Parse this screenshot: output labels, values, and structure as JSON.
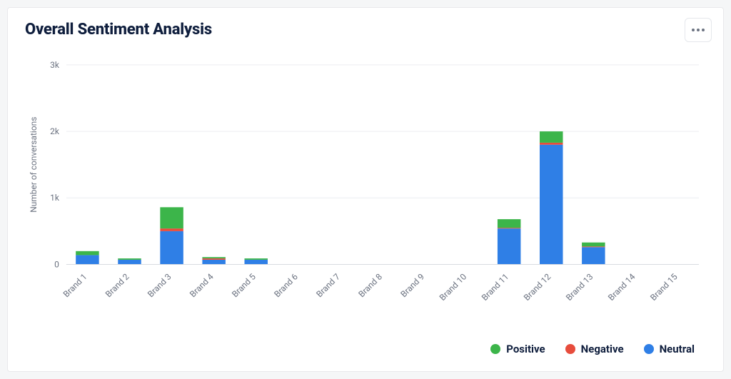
{
  "card": {
    "title": "Overall Sentiment Analysis"
  },
  "chart": {
    "type": "stacked-bar",
    "y_axis_title": "Number of conversations",
    "ylim": [
      0,
      3000
    ],
    "ytick_step": 1000,
    "ytick_labels": [
      "0",
      "1k",
      "2k",
      "3k"
    ],
    "grid_color": "#eceef1",
    "axis_color": "#d8dbe0",
    "axis_label_color": "#6b7280",
    "background_color": "#ffffff",
    "bar_width_ratio": 0.55,
    "label_fontsize": 12,
    "categories": [
      "Brand 1",
      "Brand 2",
      "Brand 3",
      "Brand 4",
      "Brand 5",
      "Brand 6",
      "Brand 7",
      "Brand 8",
      "Brand 9",
      "Brand 10",
      "Brand 11",
      "Brand 12",
      "Brand 13",
      "Brand 14",
      "Brand 15"
    ],
    "series": [
      {
        "name": "Neutral",
        "color": "#2f7fe6",
        "values": [
          140,
          70,
          500,
          70,
          70,
          0,
          0,
          0,
          0,
          0,
          540,
          1800,
          260,
          0,
          0
        ]
      },
      {
        "name": "Negative",
        "color": "#e74c3c",
        "values": [
          0,
          0,
          40,
          20,
          0,
          0,
          0,
          0,
          0,
          0,
          10,
          30,
          10,
          0,
          0
        ]
      },
      {
        "name": "Positive",
        "color": "#3cb54a",
        "values": [
          60,
          20,
          320,
          20,
          20,
          0,
          0,
          0,
          0,
          0,
          130,
          170,
          60,
          0,
          0
        ]
      }
    ]
  },
  "legend": {
    "items": [
      {
        "label": "Positive",
        "color": "#3cb54a"
      },
      {
        "label": "Negative",
        "color": "#e74c3c"
      },
      {
        "label": "Neutral",
        "color": "#2f7fe6"
      }
    ]
  }
}
